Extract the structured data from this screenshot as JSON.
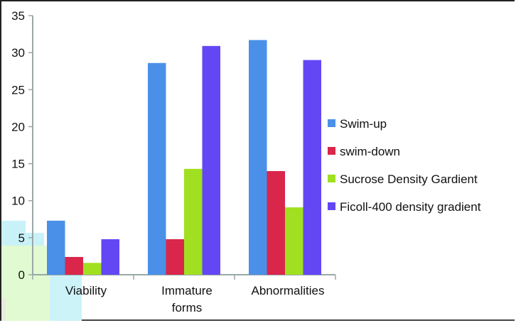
{
  "chart_data": {
    "type": "bar",
    "title": "",
    "xlabel": "",
    "ylabel": "",
    "ylim": [
      0,
      35
    ],
    "yticks": [
      0,
      5,
      10,
      15,
      20,
      25,
      30,
      35
    ],
    "grid": false,
    "legend_position": "right",
    "categories": [
      {
        "lines": [
          "Viability"
        ]
      },
      {
        "lines": [
          "Immature",
          "forms"
        ]
      },
      {
        "lines": [
          "Abnormalities"
        ]
      }
    ],
    "series": [
      {
        "name": "Swim-up",
        "color": "#4a90e8",
        "values": [
          7.3,
          28.6,
          31.7
        ]
      },
      {
        "name": "swim-down",
        "color": "#d9264a",
        "values": [
          2.4,
          4.8,
          14.0
        ]
      },
      {
        "name": "Sucrose Density Gardient",
        "color": "#a0e020",
        "values": [
          1.6,
          14.3,
          9.1
        ]
      },
      {
        "name": "Ficoll-400 density gradient",
        "color": "#6347f5",
        "values": [
          4.8,
          30.9,
          29.0
        ]
      }
    ]
  },
  "colors": {
    "axis": "#9aa8a8",
    "border": "#222222"
  }
}
